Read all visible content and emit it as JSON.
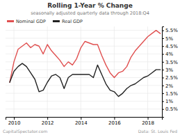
{
  "chart_data": {
    "type": "line",
    "title": "Rolling 1-Year % Change",
    "subtitle": "seasonally adjusted quarterly data through 2018:Q4",
    "annotations": [
      "CapitalSpectator.com",
      "Data: St. Louis Fed"
    ],
    "x": [
      2009.75,
      2010.0,
      2010.25,
      2010.5,
      2010.75,
      2011.0,
      2011.25,
      2011.5,
      2011.75,
      2012.0,
      2012.25,
      2012.5,
      2012.75,
      2013.0,
      2013.25,
      2013.5,
      2013.75,
      2014.0,
      2014.25,
      2014.5,
      2014.75,
      2015.0,
      2015.25,
      2015.5,
      2015.75,
      2016.0,
      2016.25,
      2016.5,
      2016.75,
      2017.0,
      2017.25,
      2017.5,
      2017.75,
      2018.0,
      2018.25,
      2018.5,
      2018.75
    ],
    "series": [
      {
        "name": "Nominal GDP",
        "color": "#e05050",
        "values": [
          2.2,
          3.5,
          4.3,
          4.5,
          4.7,
          4.4,
          4.6,
          4.5,
          4.0,
          4.6,
          4.2,
          3.9,
          3.6,
          3.2,
          3.5,
          3.3,
          3.7,
          4.4,
          4.8,
          4.7,
          4.6,
          4.6,
          3.9,
          3.3,
          2.8,
          2.5,
          2.8,
          2.9,
          3.2,
          3.8,
          4.2,
          4.5,
          4.8,
          5.1,
          5.3,
          5.5,
          5.3
        ]
      },
      {
        "name": "Real GDP",
        "color": "#222222",
        "values": [
          2.2,
          2.9,
          3.2,
          3.4,
          3.2,
          2.8,
          2.4,
          1.6,
          1.7,
          2.2,
          2.6,
          2.7,
          2.5,
          1.8,
          2.5,
          2.7,
          2.7,
          2.7,
          2.7,
          2.7,
          2.5,
          3.3,
          2.7,
          2.1,
          1.7,
          1.6,
          1.3,
          1.5,
          1.8,
          2.0,
          2.1,
          2.3,
          2.5,
          2.6,
          2.8,
          3.0,
          3.0
        ]
      }
    ],
    "xlim": [
      2009.5,
      2018.85
    ],
    "xticks": [
      2010,
      2012,
      2014,
      2016,
      2018
    ],
    "ylim": [
      0.0,
      5.75
    ],
    "yticks": [
      {
        "value": 0.5,
        "label": "0.5%"
      },
      {
        "value": 1.0,
        "label": "1%"
      },
      {
        "value": 1.5,
        "label": "1.5%"
      },
      {
        "value": 2.0,
        "label": "2%"
      },
      {
        "value": 2.5,
        "label": "2.5%"
      },
      {
        "value": 3.0,
        "label": "3%"
      },
      {
        "value": 3.5,
        "label": "3.5%"
      },
      {
        "value": 4.0,
        "label": "4%"
      },
      {
        "value": 4.5,
        "label": "4.5%"
      },
      {
        "value": 5.0,
        "label": "5%"
      },
      {
        "value": 5.5,
        "label": "5.5%"
      }
    ],
    "grid": true,
    "legend": "top-left"
  }
}
